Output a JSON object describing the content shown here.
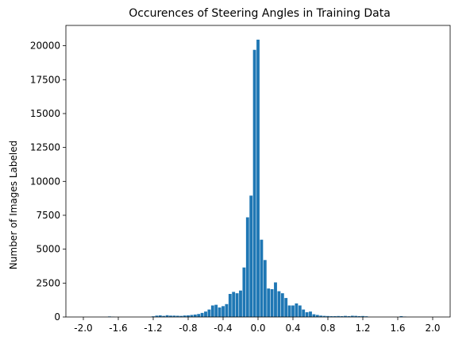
{
  "chart_data": {
    "type": "bar",
    "title": "Occurences of Steering Angles in Training Data",
    "xlabel": "",
    "ylabel": "Number of Images Labeled",
    "xlim": [
      -2.2,
      2.2
    ],
    "ylim": [
      0,
      21500
    ],
    "xticks": [
      -2.0,
      -1.6,
      -1.2,
      -0.8,
      -0.4,
      0.0,
      0.4,
      0.8,
      1.2,
      1.6,
      2.0
    ],
    "xtick_labels": [
      "-2.0",
      "-1.6",
      "-1.2",
      "-0.8",
      "-0.4",
      "0.0",
      "0.4",
      "0.8",
      "1.2",
      "1.6",
      "2.0"
    ],
    "yticks": [
      0,
      2500,
      5000,
      7500,
      10000,
      12500,
      15000,
      17500,
      20000
    ],
    "ytick_labels": [
      "0",
      "2500",
      "5000",
      "7500",
      "10000",
      "12500",
      "15000",
      "17500",
      "20000"
    ],
    "bar_width": 0.035,
    "bar_color": "#1f77b4",
    "grid": false,
    "x": [
      -1.7,
      -1.66,
      -1.2,
      -1.16,
      -1.12,
      -1.08,
      -1.04,
      -1.0,
      -0.96,
      -0.92,
      -0.88,
      -0.84,
      -0.8,
      -0.76,
      -0.72,
      -0.68,
      -0.64,
      -0.6,
      -0.56,
      -0.52,
      -0.48,
      -0.44,
      -0.4,
      -0.36,
      -0.32,
      -0.28,
      -0.24,
      -0.2,
      -0.16,
      -0.12,
      -0.08,
      -0.04,
      0.0,
      0.04,
      0.08,
      0.12,
      0.16,
      0.2,
      0.24,
      0.28,
      0.32,
      0.36,
      0.4,
      0.44,
      0.48,
      0.52,
      0.56,
      0.6,
      0.64,
      0.68,
      0.72,
      0.76,
      0.8,
      0.84,
      0.88,
      0.92,
      0.96,
      1.0,
      1.04,
      1.08,
      1.12,
      1.16,
      1.2,
      1.24,
      1.64,
      1.68
    ],
    "values": [
      40,
      20,
      50,
      100,
      120,
      80,
      130,
      100,
      100,
      90,
      80,
      110,
      120,
      150,
      180,
      220,
      300,
      400,
      550,
      850,
      900,
      700,
      800,
      950,
      1700,
      1850,
      1750,
      1950,
      3650,
      7350,
      8950,
      19700,
      20450,
      5700,
      4200,
      2100,
      2050,
      2550,
      1900,
      1750,
      1400,
      850,
      850,
      1000,
      850,
      550,
      350,
      400,
      200,
      150,
      100,
      80,
      70,
      60,
      60,
      70,
      60,
      80,
      60,
      90,
      80,
      60,
      70,
      50,
      60,
      30
    ]
  }
}
